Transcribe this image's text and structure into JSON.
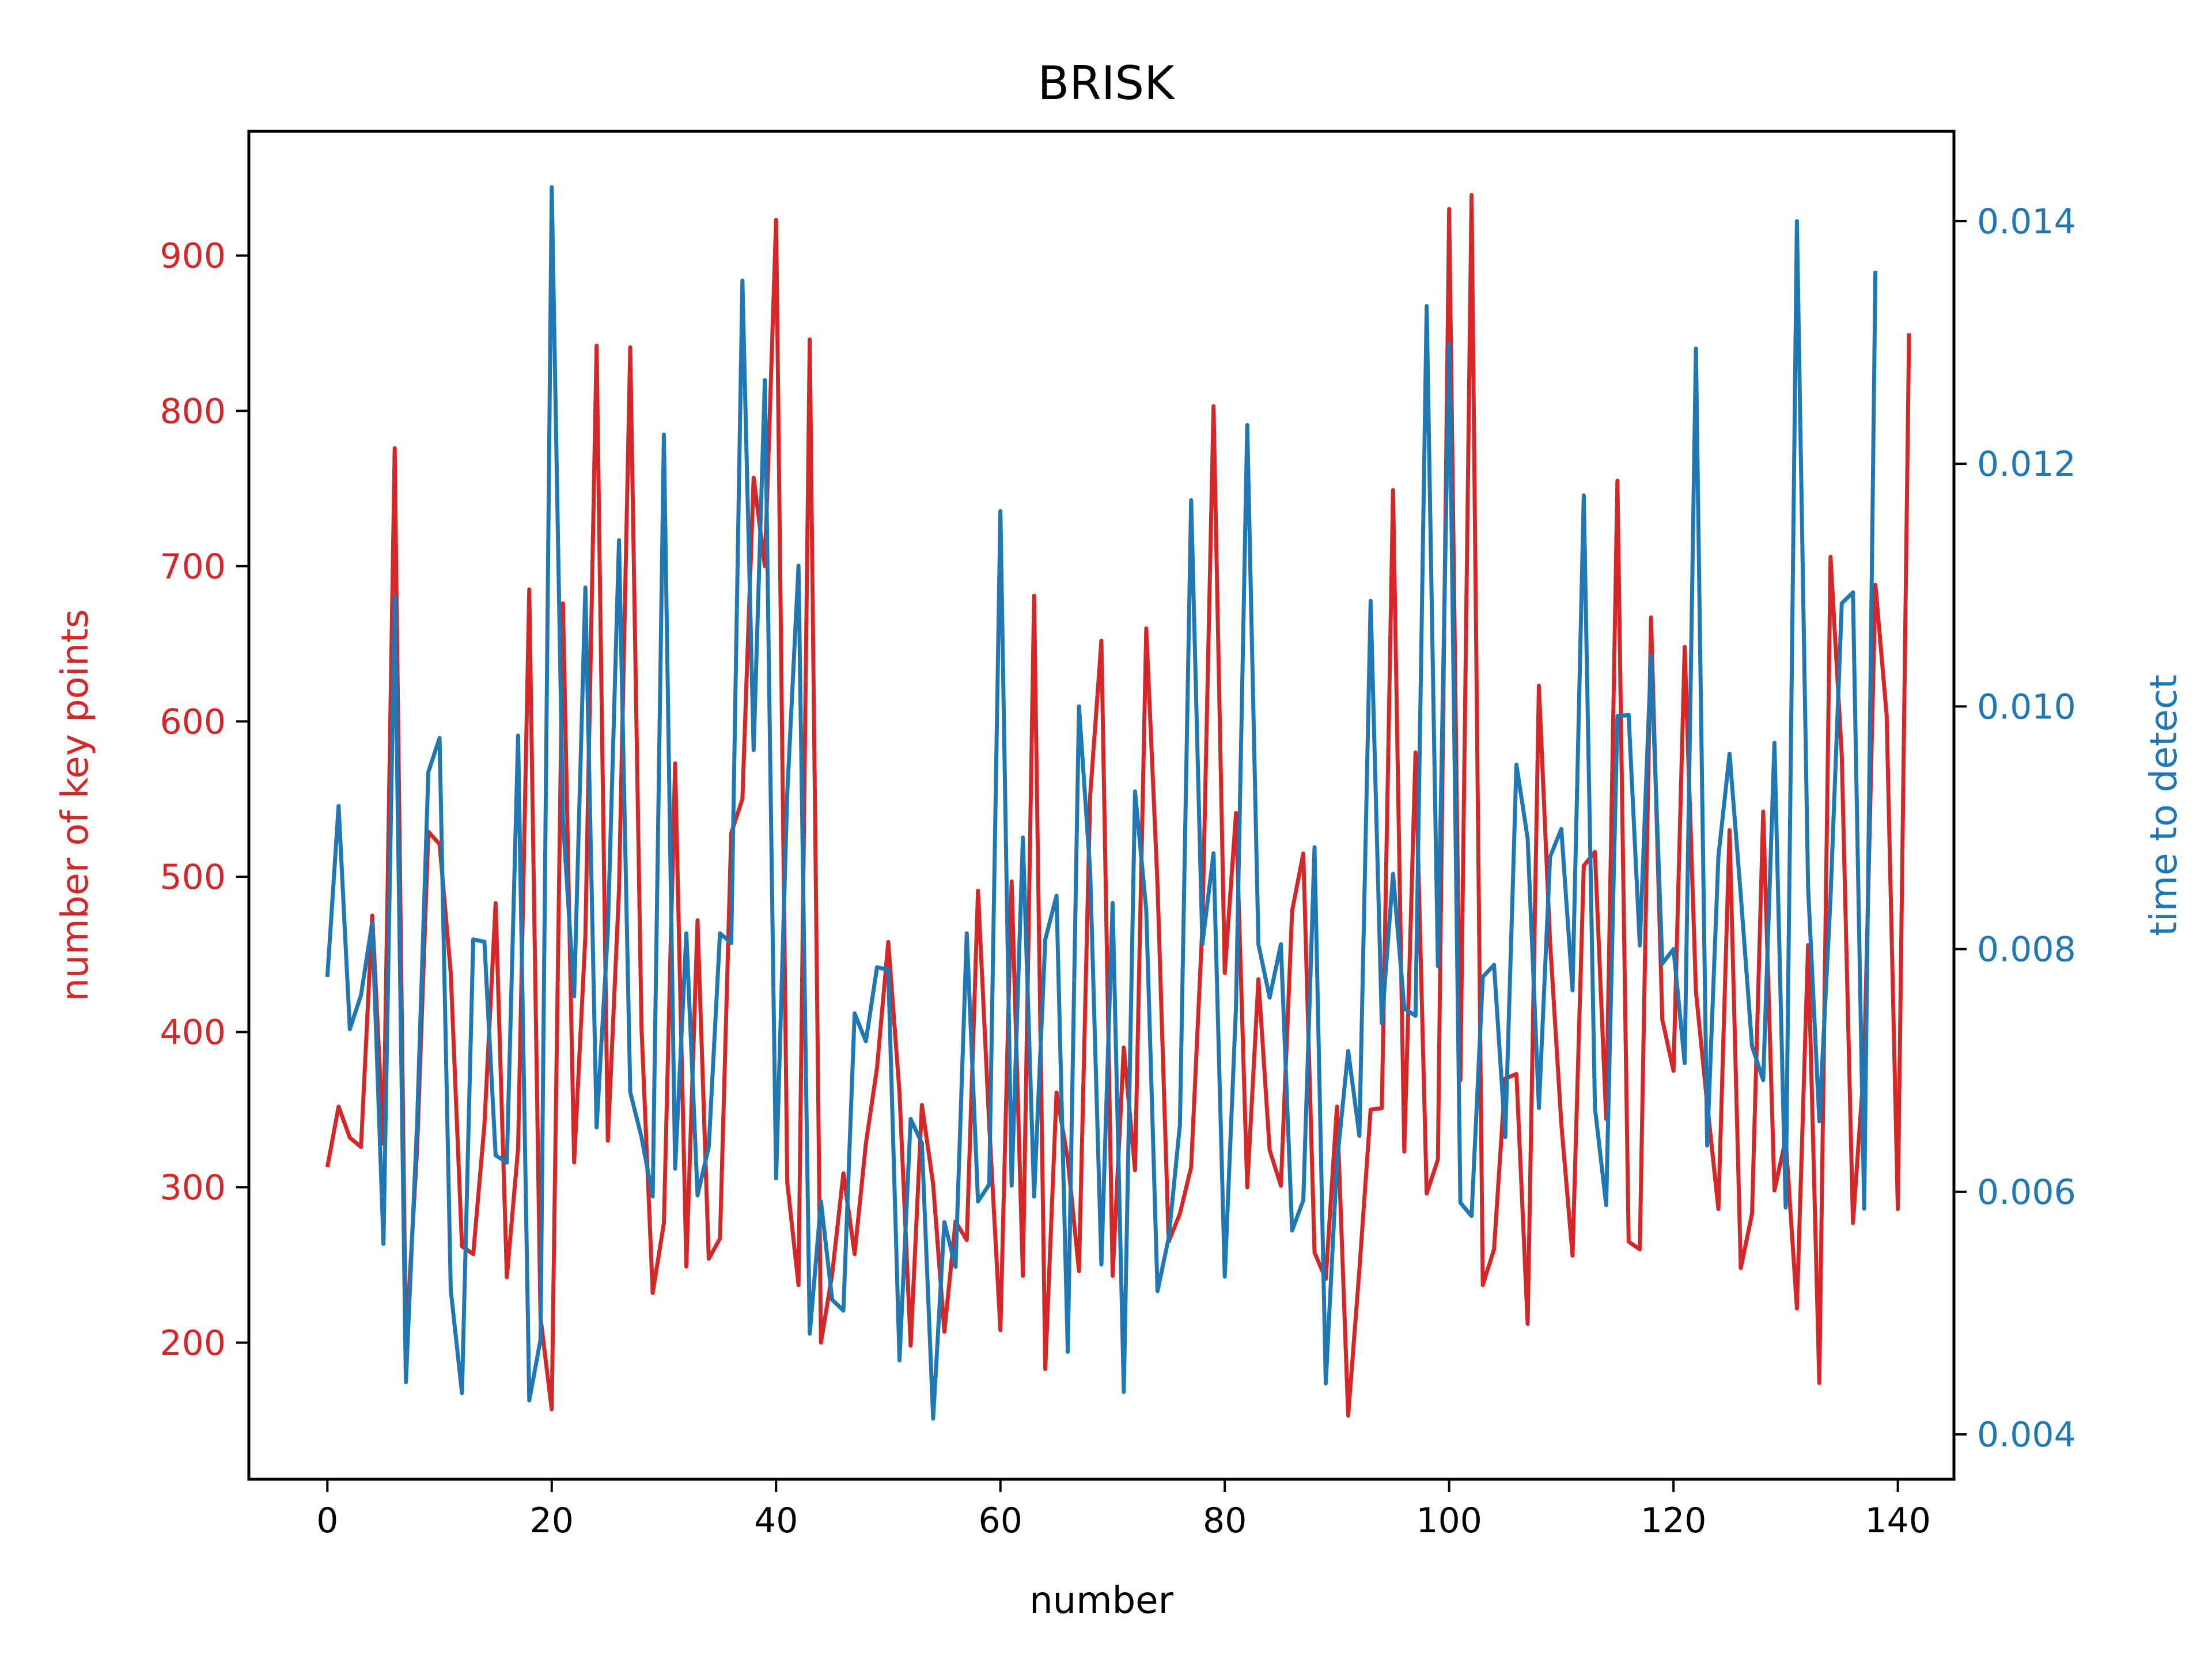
{
  "chart_data": {
    "type": "line",
    "title": "BRISK",
    "xlabel": "number",
    "ylabel_left": "number of key points",
    "ylabel_right": "time to detect",
    "xlim": [
      -7,
      145
    ],
    "ylim_left": [
      112,
      980
    ],
    "ylim_right": [
      0.00363,
      0.01474
    ],
    "x_ticks": [
      0,
      20,
      40,
      60,
      80,
      100,
      120,
      140
    ],
    "x_tick_labels": [
      "0",
      "20",
      "40",
      "60",
      "80",
      "100",
      "120",
      "140"
    ],
    "left_ticks": [
      200,
      300,
      400,
      500,
      600,
      700,
      800,
      900
    ],
    "left_tick_labels": [
      "200",
      "300",
      "400",
      "500",
      "600",
      "700",
      "800",
      "900"
    ],
    "right_ticks": [
      0.004,
      0.006,
      0.008,
      0.01,
      0.012,
      0.014
    ],
    "right_tick_labels": [
      "0.004",
      "0.006",
      "0.008",
      "0.010",
      "0.012",
      "0.014"
    ],
    "grid": false,
    "legend": "none",
    "colors": {
      "left": "#d62728",
      "right": "#1f77b4",
      "axes": "#000000"
    },
    "series": [
      {
        "axis": "left",
        "x_start": 0,
        "values": [
          313,
          352,
          332,
          326,
          475,
          328,
          776,
          198,
          325,
          529,
          521,
          438,
          262,
          257,
          340,
          483,
          242,
          325,
          685,
          216,
          157,
          676,
          316,
          462,
          842,
          330,
          492,
          841,
          403,
          232,
          277,
          573,
          249,
          472,
          254,
          267,
          528,
          550,
          757,
          700,
          923,
          303,
          237,
          846,
          200,
          244,
          309,
          257,
          328,
          377,
          458,
          361,
          198,
          353,
          302,
          207,
          278,
          266,
          491,
          340,
          208,
          497,
          243,
          681,
          183,
          361,
          318,
          246,
          552,
          652,
          243,
          390,
          311,
          660,
          495,
          265,
          283,
          313,
          468,
          803,
          438,
          541,
          300,
          434,
          324,
          301,
          478,
          515,
          258,
          241,
          352,
          153,
          247,
          350,
          351,
          749,
          323,
          580,
          296,
          318,
          930,
          369,
          939,
          237,
          260,
          370,
          373,
          212,
          623,
          458,
          341,
          256,
          507,
          516,
          344,
          755,
          265,
          260,
          667,
          408,
          375,
          648,
          426,
          354,
          286,
          530,
          248,
          283,
          542,
          298,
          331,
          222,
          456,
          174,
          706,
          578,
          277,
          380,
          688,
          604,
          286,
          850
        ]
      },
      {
        "axis": "right",
        "x_start": 0,
        "values": [
          0.00777,
          0.00918,
          0.00734,
          0.00762,
          0.00822,
          0.00557,
          0.0109,
          0.00443,
          0.00657,
          0.00946,
          0.00974,
          0.00519,
          0.00434,
          0.00808,
          0.00806,
          0.0063,
          0.00624,
          0.00976,
          0.00428,
          0.00478,
          0.01428,
          0.00906,
          0.00761,
          0.01098,
          0.00653,
          0.00815,
          0.01137,
          0.00682,
          0.00645,
          0.00596,
          0.01224,
          0.00619,
          0.00813,
          0.00597,
          0.00637,
          0.00813,
          0.00805,
          0.01351,
          0.00964,
          0.01269,
          0.00611,
          0.00929,
          0.01116,
          0.00483,
          0.00592,
          0.00511,
          0.00502,
          0.00747,
          0.00724,
          0.00785,
          0.00783,
          0.00461,
          0.0066,
          0.0064,
          0.00413,
          0.00575,
          0.00538,
          0.00813,
          0.00592,
          0.00606,
          0.01161,
          0.00605,
          0.00892,
          0.00596,
          0.00808,
          0.00844,
          0.00468,
          0.01,
          0.00864,
          0.0054,
          0.00838,
          0.00435,
          0.0093,
          0.00832,
          0.00518,
          0.00562,
          0.00655,
          0.0117,
          0.00804,
          0.00879,
          0.0053,
          0.00753,
          0.01232,
          0.00804,
          0.0076,
          0.00804,
          0.00568,
          0.00593,
          0.00884,
          0.00442,
          0.00624,
          0.00716,
          0.00646,
          0.01087,
          0.00739,
          0.00862,
          0.00751,
          0.00745,
          0.0133,
          0.00786,
          0.01299,
          0.00591,
          0.0058,
          0.00777,
          0.00787,
          0.00645,
          0.00952,
          0.00891,
          0.00669,
          0.00876,
          0.00899,
          0.00766,
          0.01174,
          0.00669,
          0.00589,
          0.00992,
          0.00993,
          0.00803,
          0.01042,
          0.00788,
          0.008,
          0.00706,
          0.01295,
          0.00638,
          0.00876,
          0.00961,
          0.00844,
          0.0072,
          0.00692,
          0.0097,
          0.00587,
          0.014,
          0.00851,
          0.00658,
          0.00843,
          0.01085,
          0.01094,
          0.00586,
          0.01359
        ]
      }
    ]
  }
}
